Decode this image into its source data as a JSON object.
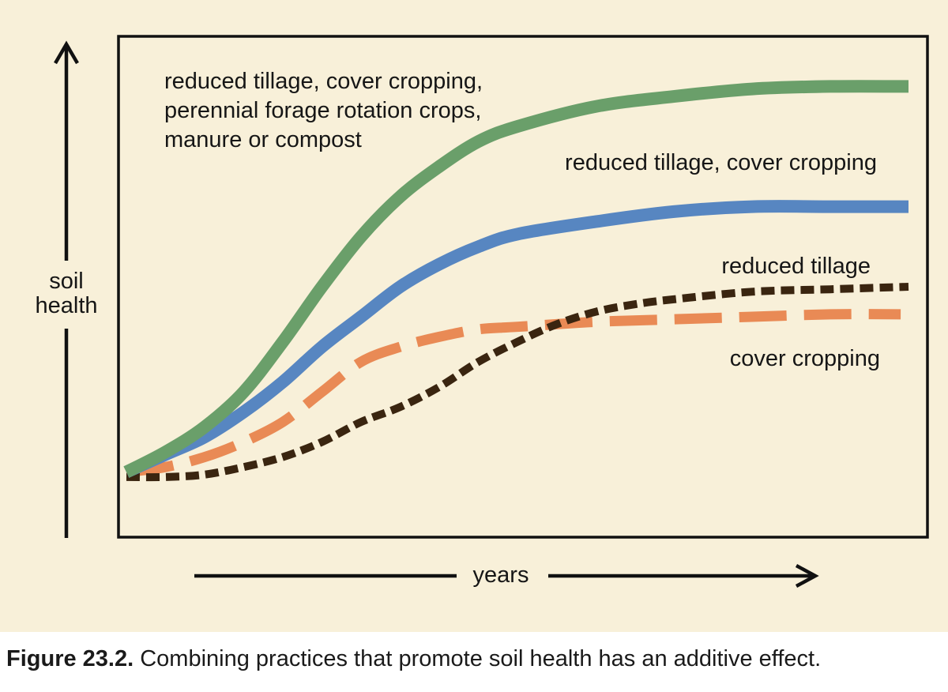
{
  "chart_data": {
    "type": "line",
    "xlabel": "years",
    "ylabel": [
      "soil",
      "health"
    ],
    "xlim": [
      0,
      1
    ],
    "ylim": [
      0,
      1
    ],
    "grid": false,
    "series": [
      {
        "name": "reduced tillage, cover cropping, perennial forage rotation crops, manure or compost",
        "label_lines": [
          "reduced tillage, cover cropping,",
          "perennial forage rotation crops,",
          "manure or compost"
        ],
        "color": "#6a9f6a",
        "style": "solid",
        "x": [
          0.0,
          0.05,
          0.1,
          0.15,
          0.2,
          0.25,
          0.3,
          0.35,
          0.4,
          0.45,
          0.5,
          0.6,
          0.7,
          0.8,
          0.9,
          1.0
        ],
        "y": [
          0.13,
          0.17,
          0.22,
          0.29,
          0.39,
          0.5,
          0.6,
          0.68,
          0.74,
          0.79,
          0.82,
          0.86,
          0.88,
          0.895,
          0.9,
          0.9
        ]
      },
      {
        "name": "reduced tillage, cover cropping",
        "label_lines": [
          "reduced tillage, cover cropping"
        ],
        "color": "#5786c1",
        "style": "solid",
        "x": [
          0.0,
          0.05,
          0.1,
          0.15,
          0.2,
          0.25,
          0.3,
          0.35,
          0.4,
          0.45,
          0.5,
          0.6,
          0.7,
          0.8,
          0.9,
          1.0
        ],
        "y": [
          0.13,
          0.165,
          0.2,
          0.25,
          0.31,
          0.38,
          0.44,
          0.5,
          0.545,
          0.58,
          0.605,
          0.63,
          0.65,
          0.66,
          0.66,
          0.66
        ]
      },
      {
        "name": "reduced tillage",
        "label_lines": [
          "reduced tillage"
        ],
        "color": "#3a2510",
        "style": "dotted",
        "x": [
          0.0,
          0.05,
          0.1,
          0.15,
          0.2,
          0.25,
          0.3,
          0.35,
          0.4,
          0.45,
          0.5,
          0.55,
          0.6,
          0.65,
          0.7,
          0.8,
          0.9,
          1.0
        ],
        "y": [
          0.12,
          0.12,
          0.125,
          0.14,
          0.16,
          0.19,
          0.23,
          0.26,
          0.3,
          0.35,
          0.39,
          0.425,
          0.45,
          0.465,
          0.475,
          0.49,
          0.495,
          0.5
        ]
      },
      {
        "name": "cover cropping",
        "label_lines": [
          "cover cropping"
        ],
        "color": "#e98a55",
        "style": "dashed",
        "x": [
          0.0,
          0.05,
          0.1,
          0.15,
          0.2,
          0.25,
          0.3,
          0.35,
          0.4,
          0.45,
          0.5,
          0.6,
          0.7,
          0.8,
          0.9,
          0.99
        ],
        "y": [
          0.13,
          0.14,
          0.16,
          0.19,
          0.23,
          0.29,
          0.35,
          0.38,
          0.4,
          0.415,
          0.42,
          0.43,
          0.435,
          0.44,
          0.445,
          0.445
        ]
      }
    ]
  },
  "caption": {
    "label": "Figure 23.2.",
    "text": " Combining practices that promote soil health has an additive effect."
  }
}
